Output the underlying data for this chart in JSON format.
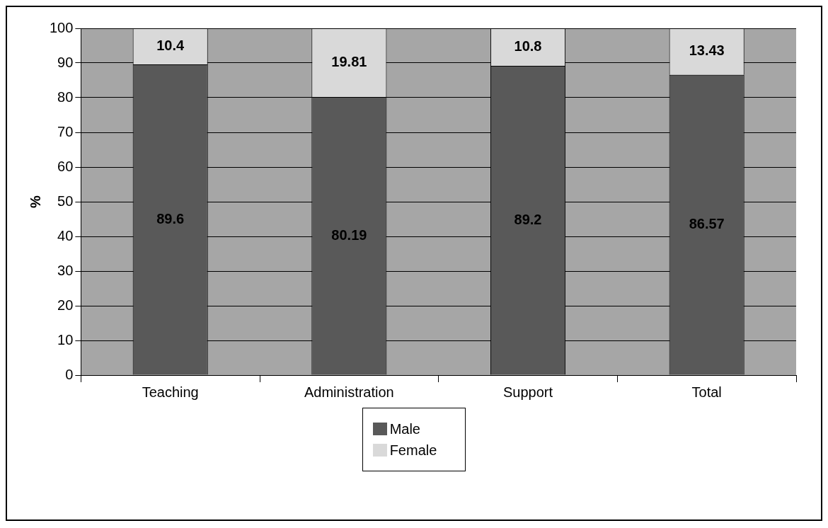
{
  "chart_data": {
    "type": "bar",
    "stacked": true,
    "ylabel": "%",
    "categories": [
      "Teaching",
      "Administration",
      "Support",
      "Total"
    ],
    "series": [
      {
        "name": "Male",
        "color": "#595959",
        "values": [
          89.6,
          80.19,
          89.2,
          86.57
        ]
      },
      {
        "name": "Female",
        "color": "#d9d9d9",
        "values": [
          10.4,
          19.81,
          10.8,
          13.43
        ]
      }
    ],
    "ylim": [
      0,
      100
    ],
    "yticks": [
      0,
      10,
      20,
      30,
      40,
      50,
      60,
      70,
      80,
      90,
      100
    ],
    "grid": "y",
    "legend": "bottom",
    "data_labels": true
  }
}
